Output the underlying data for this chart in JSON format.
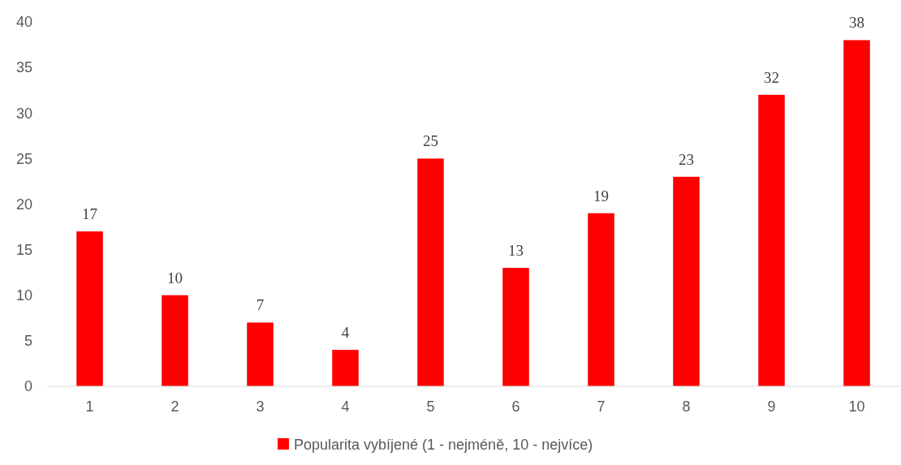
{
  "chart_data": {
    "type": "bar",
    "categories": [
      "1",
      "2",
      "3",
      "4",
      "5",
      "6",
      "7",
      "8",
      "9",
      "10"
    ],
    "series": [
      {
        "name": "Popularita vybíjené (1 - nejméně, 10 - nejvíce)",
        "color": "#ff0000",
        "values": [
          17,
          10,
          7,
          4,
          25,
          13,
          19,
          23,
          32,
          38
        ]
      }
    ],
    "ylim": [
      0,
      40
    ],
    "yticks": [
      0,
      5,
      10,
      15,
      20,
      25,
      30,
      35,
      40
    ],
    "data_labels": true,
    "legend": "bottom",
    "grid": false
  }
}
